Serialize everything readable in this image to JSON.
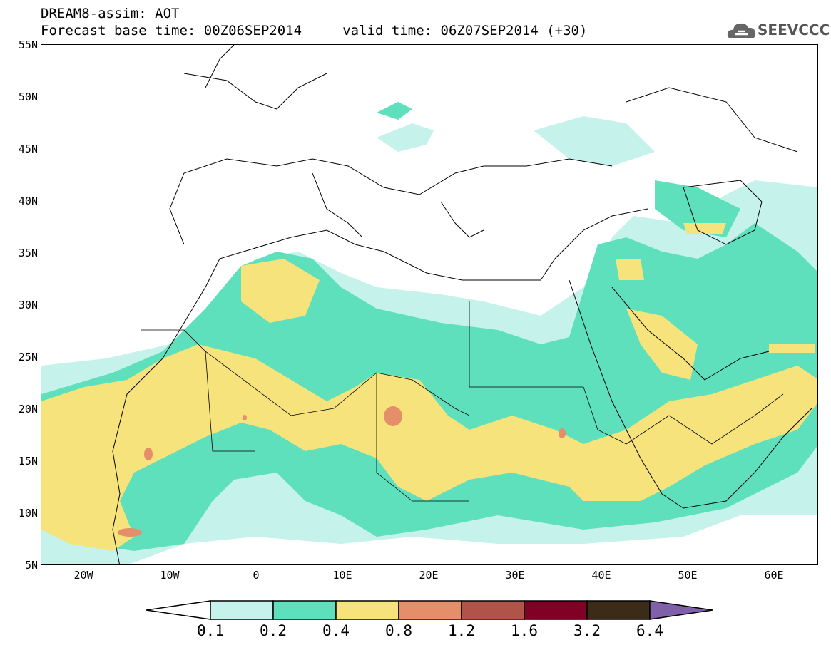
{
  "header": {
    "line1": "DREAM8-assim: AOT",
    "line2": "Forecast base time: 00Z06SEP2014     valid time: 06Z07SEP2014 (+30)"
  },
  "logo": {
    "text": "SEEVCCC",
    "icon": "cloud-logo-icon"
  },
  "map": {
    "y_axis_labels": [
      "55N",
      "50N",
      "45N",
      "40N",
      "35N",
      "30N",
      "25N",
      "20N",
      "15N",
      "10N",
      "5N"
    ],
    "x_axis_labels": [
      "20W",
      "10W",
      "0",
      "10E",
      "20E",
      "30E",
      "40E",
      "50E",
      "60E"
    ],
    "lon_range": [
      -25,
      65
    ],
    "lat_range": [
      5,
      55
    ]
  },
  "colorbar": {
    "labels": [
      "0.1",
      "0.2",
      "0.4",
      "0.8",
      "1.2",
      "1.6",
      "3.2",
      "6.4"
    ],
    "colors": [
      "#ffffff",
      "#c5f2ea",
      "#5ee0bd",
      "#f6e37c",
      "#e48e6a",
      "#b0544a",
      "#800026",
      "#3d2b1a",
      "#8060a8"
    ]
  }
}
